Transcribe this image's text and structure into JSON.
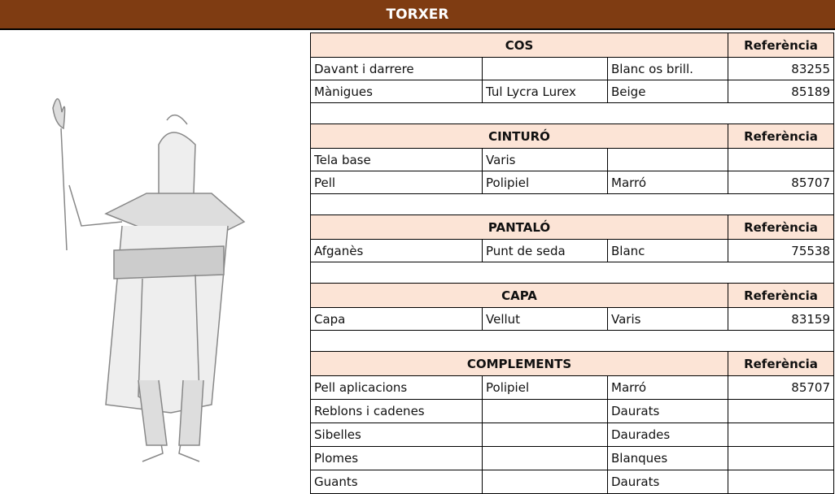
{
  "title": "TORXER",
  "sections": [
    {
      "title": "COS",
      "ref_header": "Referència",
      "rows": [
        [
          "Davant i darrere",
          null,
          "Blanc os brill.",
          "83255"
        ],
        [
          "Mànigues",
          "Tul Lycra Lurex",
          "Beige",
          "85189"
        ]
      ]
    },
    {
      "title": "CINTURÓ",
      "ref_header": "Referència",
      "rows": [
        [
          "Tela base",
          "Varis",
          null,
          null
        ],
        [
          "Pell",
          "Polipiel",
          "Marró",
          "85707"
        ]
      ]
    },
    {
      "title": "PANTALÓ",
      "ref_header": "Referència",
      "rows": [
        [
          "Afganès",
          "Punt de seda",
          "Blanc",
          "75538"
        ]
      ]
    },
    {
      "title": "CAPA",
      "ref_header": "Referència",
      "rows": [
        [
          "Capa",
          "Vellut",
          "Varis",
          "83159"
        ]
      ]
    },
    {
      "title": "COMPLEMENTS",
      "ref_header": "Referència",
      "rows": [
        [
          "Pell aplicacions",
          "Polipiel",
          "Marró",
          "85707"
        ],
        [
          "Reblons i cadenes",
          null,
          "Daurats",
          null
        ],
        [
          "Sibelles",
          null,
          "Daurades",
          null
        ],
        [
          "Plomes",
          null,
          "Blanques",
          null
        ],
        [
          "Guants",
          null,
          "Daurats",
          null
        ]
      ]
    }
  ]
}
